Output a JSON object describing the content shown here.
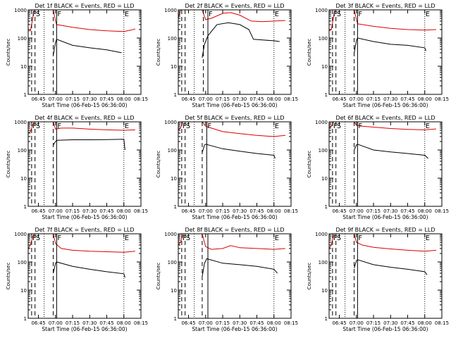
{
  "colors": {
    "events": "#000000",
    "lld": "#dd0000",
    "axis": "#000000"
  },
  "common": {
    "ylabel": "Counts/sec",
    "xlabel": "Start Time (06-Feb-15 06:36:00)",
    "y_ticks": [
      1,
      10,
      100,
      1000
    ],
    "y_tick_labels": [
      "1",
      "10",
      "100",
      "1000"
    ],
    "y_scale": "log",
    "ylim": [
      1,
      1000
    ],
    "x_range": [
      "06:36",
      "08:15"
    ],
    "x_tick_labels": [
      "06:45",
      "07:00",
      "07:15",
      "07:30",
      "07:45",
      "08:00",
      "08:15"
    ],
    "marker_labels": [
      "F",
      "S",
      "F",
      "E"
    ]
  },
  "chart_data": [
    {
      "type": "line",
      "title": "Det 1f BLACK = Events, RED = LLD",
      "ylabel": "Counts/sec",
      "xlabel": "Start Time (06-Feb-15 06:36:00)",
      "x_ticks": [
        "06:45",
        "07:00",
        "07:15",
        "07:30",
        "07:45",
        "08:00",
        "08:15"
      ],
      "ylim": [
        1,
        1000
      ],
      "series": [
        {
          "name": "LLD",
          "color": "red",
          "x": [
            "06:36",
            "06:38",
            "06:40",
            "06:41",
            "06:42",
            "06:50",
            "06:58",
            "07:00",
            "07:01",
            "07:15",
            "07:30",
            "07:45",
            "08:00",
            "08:06",
            "08:10"
          ],
          "y": [
            180,
            180,
            500,
            1000,
            1000,
            1000,
            1000,
            400,
            300,
            240,
            200,
            180,
            170,
            190,
            210
          ]
        },
        {
          "name": "Events",
          "color": "black",
          "x": [
            "06:58",
            "07:00",
            "07:01",
            "07:15",
            "07:30",
            "07:45",
            "07:58"
          ],
          "y": [
            25,
            70,
            90,
            55,
            45,
            38,
            30
          ]
        }
      ],
      "markers": [
        {
          "label": "F",
          "time": "06:39",
          "style": "dashed"
        },
        {
          "label": "S",
          "time": "06:42",
          "style": "dashed"
        },
        {
          "label": "",
          "time": "06:50",
          "style": "dotted"
        },
        {
          "label": "",
          "time": "06:58",
          "style": "dashed"
        },
        {
          "label": "F",
          "time": "07:01",
          "style": "solid"
        },
        {
          "label": "E",
          "time": "08:00",
          "style": "dotted"
        }
      ]
    },
    {
      "type": "line",
      "title": "Det 2f BLACK = Events, RED = LLD",
      "ylabel": "Counts/sec",
      "xlabel": "Start Time (06-Feb-15 06:36:00)",
      "x_ticks": [
        "06:45",
        "07:00",
        "07:15",
        "07:30",
        "07:45",
        "08:00",
        "08:15"
      ],
      "ylim": [
        1,
        1000
      ],
      "series": [
        {
          "name": "LLD",
          "color": "red",
          "x": [
            "06:36",
            "06:38",
            "06:40",
            "06:41",
            "06:42",
            "06:50",
            "06:57",
            "07:00",
            "07:05",
            "07:15",
            "07:22",
            "07:30",
            "07:40",
            "07:50",
            "08:00",
            "08:10"
          ],
          "y": [
            500,
            1000,
            1000,
            1000,
            1000,
            1000,
            1000,
            450,
            500,
            750,
            800,
            650,
            400,
            380,
            400,
            420
          ]
        },
        {
          "name": "Events",
          "color": "black",
          "x": [
            "06:57",
            "06:59",
            "07:02",
            "07:10",
            "07:20",
            "07:30",
            "07:38",
            "07:42",
            "07:50",
            "08:00",
            "08:05"
          ],
          "y": [
            20,
            60,
            120,
            300,
            350,
            300,
            200,
            90,
            85,
            80,
            75
          ]
        }
      ],
      "markers": [
        {
          "label": "",
          "time": "06:39",
          "style": "dashed"
        },
        {
          "label": "",
          "time": "06:42",
          "style": "dashed"
        },
        {
          "label": "",
          "time": "06:50",
          "style": "dotted"
        },
        {
          "label": "",
          "time": "06:58",
          "style": "dashed"
        },
        {
          "label": "F",
          "time": "07:02",
          "style": "solid"
        },
        {
          "label": "E",
          "time": "08:00",
          "style": "dotted"
        }
      ]
    },
    {
      "type": "line",
      "title": "Det 3f BLACK = Events, RED = LLD",
      "ylabel": "Counts/sec",
      "xlabel": "Start Time (06-Feb-15 06:36:00)",
      "x_ticks": [
        "06:45",
        "07:00",
        "07:15",
        "07:30",
        "07:45",
        "08:00",
        "08:15"
      ],
      "ylim": [
        1,
        1000
      ],
      "series": [
        {
          "name": "LLD",
          "color": "red",
          "x": [
            "06:36",
            "06:38",
            "06:40",
            "06:41",
            "06:42",
            "06:50",
            "06:58",
            "07:00",
            "07:01",
            "07:15",
            "07:30",
            "07:45",
            "08:00",
            "08:10"
          ],
          "y": [
            180,
            200,
            600,
            1000,
            1000,
            1000,
            1000,
            450,
            320,
            260,
            220,
            200,
            190,
            200
          ]
        },
        {
          "name": "Events",
          "color": "black",
          "x": [
            "06:58",
            "07:00",
            "07:01",
            "07:15",
            "07:30",
            "07:45",
            "08:00",
            "08:01"
          ],
          "y": [
            30,
            80,
            100,
            75,
            60,
            55,
            45,
            35
          ]
        }
      ],
      "markers": [
        {
          "label": "F",
          "time": "06:39",
          "style": "dashed"
        },
        {
          "label": "S",
          "time": "06:42",
          "style": "dashed"
        },
        {
          "label": "",
          "time": "06:50",
          "style": "dotted"
        },
        {
          "label": "",
          "time": "06:58",
          "style": "dashed"
        },
        {
          "label": "F",
          "time": "07:01",
          "style": "solid"
        },
        {
          "label": "E",
          "time": "08:00",
          "style": "dotted"
        }
      ]
    },
    {
      "type": "line",
      "title": "Det 4f BLACK = Events, RED = LLD",
      "ylabel": "Counts/sec",
      "xlabel": "Start Time (06-Feb-15 06:36:00)",
      "x_ticks": [
        "06:45",
        "07:00",
        "07:15",
        "07:30",
        "07:45",
        "08:00",
        "08:15"
      ],
      "ylim": [
        1,
        1000
      ],
      "series": [
        {
          "name": "LLD",
          "color": "red",
          "x": [
            "06:36",
            "06:38",
            "06:40",
            "06:41",
            "06:42",
            "06:50",
            "06:58",
            "07:00",
            "07:05",
            "07:15",
            "07:30",
            "07:45",
            "08:00",
            "08:10"
          ],
          "y": [
            400,
            450,
            800,
            1000,
            1000,
            1000,
            1000,
            550,
            600,
            600,
            550,
            520,
            500,
            520
          ]
        },
        {
          "name": "Events",
          "color": "black",
          "x": [
            "06:58",
            "07:00",
            "07:01",
            "07:15",
            "07:30",
            "07:45",
            "08:00",
            "08:01"
          ],
          "y": [
            150,
            200,
            220,
            230,
            230,
            235,
            240,
            100
          ]
        }
      ],
      "markers": [
        {
          "label": "F",
          "time": "06:39",
          "style": "dashed"
        },
        {
          "label": "S",
          "time": "06:42",
          "style": "dashed"
        },
        {
          "label": "",
          "time": "06:50",
          "style": "dotted"
        },
        {
          "label": "",
          "time": "06:58",
          "style": "dashed"
        },
        {
          "label": "F",
          "time": "07:01",
          "style": "solid"
        },
        {
          "label": "E",
          "time": "08:00",
          "style": "dotted"
        }
      ]
    },
    {
      "type": "line",
      "title": "Det 5f BLACK = Events, RED = LLD",
      "ylabel": "Counts/sec",
      "xlabel": "Start Time (06-Feb-15 06:36:00)",
      "x_ticks": [
        "06:45",
        "07:00",
        "07:15",
        "07:30",
        "07:45",
        "08:00",
        "08:15"
      ],
      "ylim": [
        1,
        1000
      ],
      "series": [
        {
          "name": "LLD",
          "color": "red",
          "x": [
            "06:36",
            "06:38",
            "06:40",
            "06:41",
            "06:42",
            "06:50",
            "06:57",
            "07:00",
            "07:05",
            "07:15",
            "07:30",
            "07:45",
            "08:00",
            "08:10"
          ],
          "y": [
            500,
            600,
            1000,
            1000,
            1000,
            1000,
            1000,
            700,
            600,
            450,
            380,
            330,
            300,
            330
          ]
        },
        {
          "name": "Events",
          "color": "black",
          "x": [
            "06:57",
            "06:59",
            "07:00",
            "07:15",
            "07:30",
            "07:45",
            "08:00",
            "08:01"
          ],
          "y": [
            80,
            150,
            160,
            110,
            90,
            75,
            65,
            50
          ]
        }
      ],
      "markers": [
        {
          "label": "F",
          "time": "06:39",
          "style": "dashed"
        },
        {
          "label": "S",
          "time": "06:42",
          "style": "dashed"
        },
        {
          "label": "",
          "time": "06:50",
          "style": "dotted"
        },
        {
          "label": "",
          "time": "06:57",
          "style": "dashed"
        },
        {
          "label": "F",
          "time": "07:01",
          "style": "solid"
        },
        {
          "label": "E",
          "time": "08:00",
          "style": "dotted"
        }
      ]
    },
    {
      "type": "line",
      "title": "Det 6f BLACK = Events, RED = LLD",
      "ylabel": "Counts/sec",
      "xlabel": "Start Time (06-Feb-15 06:36:00)",
      "x_ticks": [
        "06:45",
        "07:00",
        "07:15",
        "07:30",
        "07:45",
        "08:00",
        "08:15"
      ],
      "ylim": [
        1,
        1000
      ],
      "series": [
        {
          "name": "LLD",
          "color": "red",
          "x": [
            "06:36",
            "06:38",
            "06:40",
            "06:41",
            "06:42",
            "06:50",
            "06:58",
            "07:00",
            "07:05",
            "07:15",
            "07:30",
            "07:45",
            "08:00",
            "08:10"
          ],
          "y": [
            600,
            700,
            1000,
            1000,
            1000,
            1000,
            1000,
            750,
            700,
            650,
            580,
            540,
            520,
            560
          ]
        },
        {
          "name": "Events",
          "color": "black",
          "x": [
            "06:58",
            "07:00",
            "07:01",
            "07:15",
            "07:30",
            "07:45",
            "08:00",
            "08:03"
          ],
          "y": [
            100,
            150,
            160,
            100,
            85,
            75,
            65,
            50
          ]
        }
      ],
      "markers": [
        {
          "label": "F",
          "time": "06:39",
          "style": "dashed"
        },
        {
          "label": "S",
          "time": "06:42",
          "style": "dashed"
        },
        {
          "label": "",
          "time": "06:50",
          "style": "dotted"
        },
        {
          "label": "",
          "time": "06:58",
          "style": "dashed"
        },
        {
          "label": "F",
          "time": "07:01",
          "style": "solid"
        },
        {
          "label": "E",
          "time": "08:00",
          "style": "dotted"
        }
      ]
    },
    {
      "type": "line",
      "title": "Det 7f BLACK = Events, RED = LLD",
      "ylabel": "Counts/sec",
      "xlabel": "Start Time (06-Feb-15 06:36:00)",
      "x_ticks": [
        "06:45",
        "07:00",
        "07:15",
        "07:30",
        "07:45",
        "08:00",
        "08:15"
      ],
      "ylim": [
        1,
        1000
      ],
      "series": [
        {
          "name": "LLD",
          "color": "red",
          "x": [
            "06:36",
            "06:38",
            "06:40",
            "06:41",
            "06:42",
            "06:50",
            "06:58",
            "07:00",
            "07:05",
            "07:15",
            "07:30",
            "07:45",
            "08:00",
            "08:10"
          ],
          "y": [
            300,
            400,
            800,
            1000,
            1000,
            1000,
            1000,
            450,
            300,
            260,
            240,
            230,
            220,
            240
          ]
        },
        {
          "name": "Events",
          "color": "black",
          "x": [
            "06:58",
            "07:00",
            "07:01",
            "07:15",
            "07:30",
            "07:45",
            "08:00",
            "08:01"
          ],
          "y": [
            40,
            90,
            100,
            70,
            55,
            45,
            38,
            28
          ]
        }
      ],
      "markers": [
        {
          "label": "F",
          "time": "06:39",
          "style": "dashed"
        },
        {
          "label": "S",
          "time": "06:42",
          "style": "dashed"
        },
        {
          "label": "",
          "time": "06:50",
          "style": "dotted"
        },
        {
          "label": "",
          "time": "06:58",
          "style": "dashed"
        },
        {
          "label": "F",
          "time": "07:01",
          "style": "solid"
        },
        {
          "label": "E",
          "time": "08:00",
          "style": "dotted"
        }
      ]
    },
    {
      "type": "line",
      "title": "Det 8f BLACK = Events, RED = LLD",
      "ylabel": "Counts/sec",
      "xlabel": "Start Time (06-Feb-15 06:36:00)",
      "x_ticks": [
        "06:45",
        "07:00",
        "07:15",
        "07:30",
        "07:45",
        "08:00",
        "08:15"
      ],
      "ylim": [
        1,
        1000
      ],
      "series": [
        {
          "name": "LLD",
          "color": "red",
          "x": [
            "06:36",
            "06:38",
            "06:40",
            "06:41",
            "06:42",
            "06:50",
            "06:57",
            "07:00",
            "07:05",
            "07:15",
            "07:22",
            "07:30",
            "07:45",
            "08:00",
            "08:10"
          ],
          "y": [
            400,
            500,
            900,
            1000,
            1000,
            1000,
            1000,
            350,
            280,
            300,
            380,
            320,
            300,
            280,
            300
          ]
        },
        {
          "name": "Events",
          "color": "black",
          "x": [
            "06:57",
            "06:59",
            "07:01",
            "07:15",
            "07:30",
            "07:45",
            "08:00",
            "08:03"
          ],
          "y": [
            30,
            90,
            130,
            90,
            80,
            70,
            55,
            40
          ]
        }
      ],
      "markers": [
        {
          "label": "F",
          "time": "06:39",
          "style": "dashed"
        },
        {
          "label": "S",
          "time": "06:42",
          "style": "dashed"
        },
        {
          "label": "",
          "time": "06:50",
          "style": "dotted"
        },
        {
          "label": "",
          "time": "06:57",
          "style": "dashed"
        },
        {
          "label": "",
          "time": "07:02",
          "style": "solid"
        },
        {
          "label": "E",
          "time": "08:00",
          "style": "dotted"
        }
      ]
    },
    {
      "type": "line",
      "title": "Det 9f BLACK = Events, RED = LLD",
      "ylabel": "Counts/sec",
      "xlabel": "Start Time (06-Feb-15 06:36:00)",
      "x_ticks": [
        "06:45",
        "07:00",
        "07:15",
        "07:30",
        "07:45",
        "08:00",
        "08:15"
      ],
      "ylim": [
        1,
        1000
      ],
      "series": [
        {
          "name": "LLD",
          "color": "red",
          "x": [
            "06:36",
            "06:38",
            "06:40",
            "06:41",
            "06:42",
            "06:50",
            "06:58",
            "07:00",
            "07:05",
            "07:15",
            "07:30",
            "07:45",
            "08:00",
            "08:10"
          ],
          "y": [
            300,
            400,
            900,
            1000,
            1000,
            1000,
            1000,
            500,
            400,
            330,
            290,
            260,
            240,
            260
          ]
        },
        {
          "name": "Events",
          "color": "black",
          "x": [
            "06:58",
            "07:00",
            "07:01",
            "07:15",
            "07:30",
            "07:45",
            "08:00",
            "08:02"
          ],
          "y": [
            60,
            110,
            120,
            80,
            65,
            55,
            45,
            35
          ]
        }
      ],
      "markers": [
        {
          "label": "F",
          "time": "06:39",
          "style": "dashed"
        },
        {
          "label": "S",
          "time": "06:42",
          "style": "dashed"
        },
        {
          "label": "",
          "time": "06:50",
          "style": "dotted"
        },
        {
          "label": "",
          "time": "06:58",
          "style": "dashed"
        },
        {
          "label": "F",
          "time": "07:01",
          "style": "solid"
        },
        {
          "label": "E",
          "time": "08:00",
          "style": "dotted"
        }
      ]
    }
  ]
}
